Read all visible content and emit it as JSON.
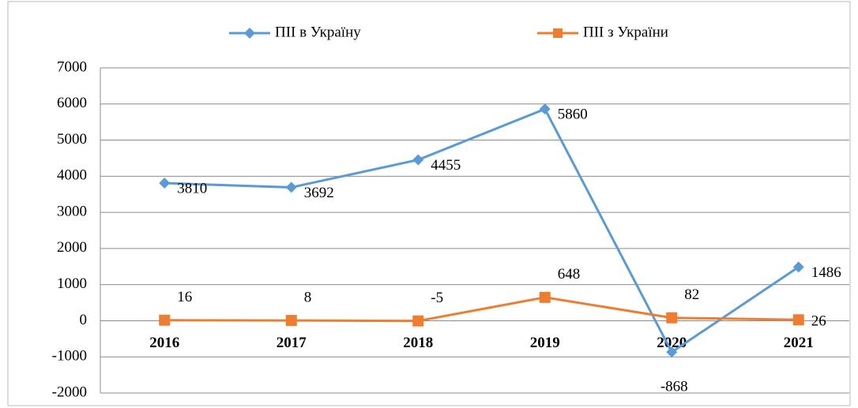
{
  "chart_data": {
    "type": "line",
    "categories": [
      "2016",
      "2017",
      "2018",
      "2019",
      "2020",
      "2021"
    ],
    "series": [
      {
        "name": "ПІІ в Україну",
        "color": "#5b9bd5",
        "values": [
          3810,
          3692,
          4455,
          5860,
          -868,
          1486
        ]
      },
      {
        "name": "ПІІ з України",
        "color": "#ed7d31",
        "values": [
          16,
          8,
          -5,
          648,
          82,
          26
        ]
      }
    ],
    "ylim": [
      -2000,
      7000
    ],
    "yticks": [
      -2000,
      -1000,
      0,
      1000,
      2000,
      3000,
      4000,
      5000,
      6000,
      7000
    ],
    "grid": true,
    "legend": "top"
  }
}
